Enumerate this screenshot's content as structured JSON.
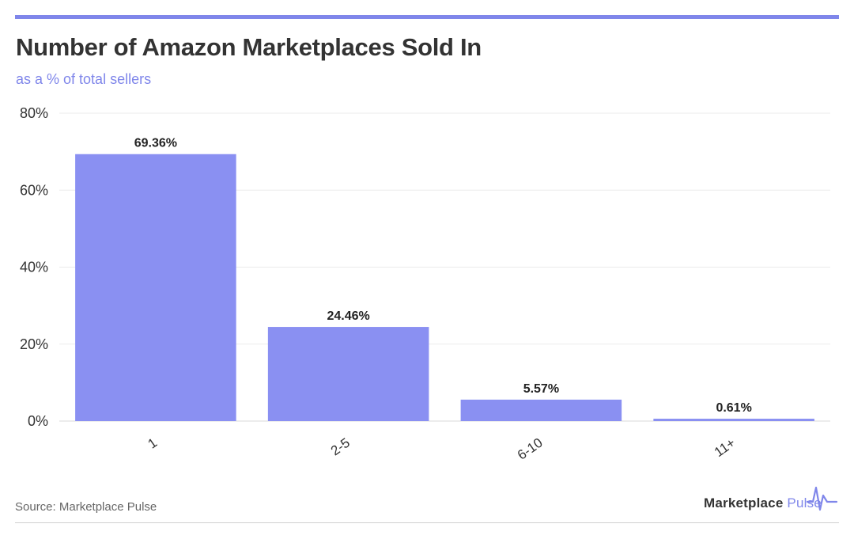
{
  "header": {
    "title": "Number of Amazon Marketplaces Sold In",
    "subtitle": "as a % of total sellers"
  },
  "footer": {
    "source": "Source: Marketplace Pulse",
    "brand_main": "Marketplace",
    "brand_accent": "Pulse",
    "brand_icon": "pulse-line-icon"
  },
  "colors": {
    "accent": "#7f86ea",
    "bar": "#8a90f2",
    "text": "#333333",
    "grid": "#ebebeb"
  },
  "chart_data": {
    "type": "bar",
    "title": "Number of Amazon Marketplaces Sold In",
    "subtitle": "as a % of total sellers",
    "categories": [
      "1",
      "2-5",
      "6-10",
      "11+"
    ],
    "values": [
      69.36,
      24.46,
      5.57,
      0.61
    ],
    "value_labels": [
      "69.36%",
      "24.46%",
      "5.57%",
      "0.61%"
    ],
    "ylim": [
      0,
      80
    ],
    "yticks": [
      0,
      20,
      40,
      60,
      80
    ],
    "ytick_labels": [
      "0%",
      "20%",
      "40%",
      "60%",
      "80%"
    ],
    "grid": true,
    "legend": "none"
  }
}
